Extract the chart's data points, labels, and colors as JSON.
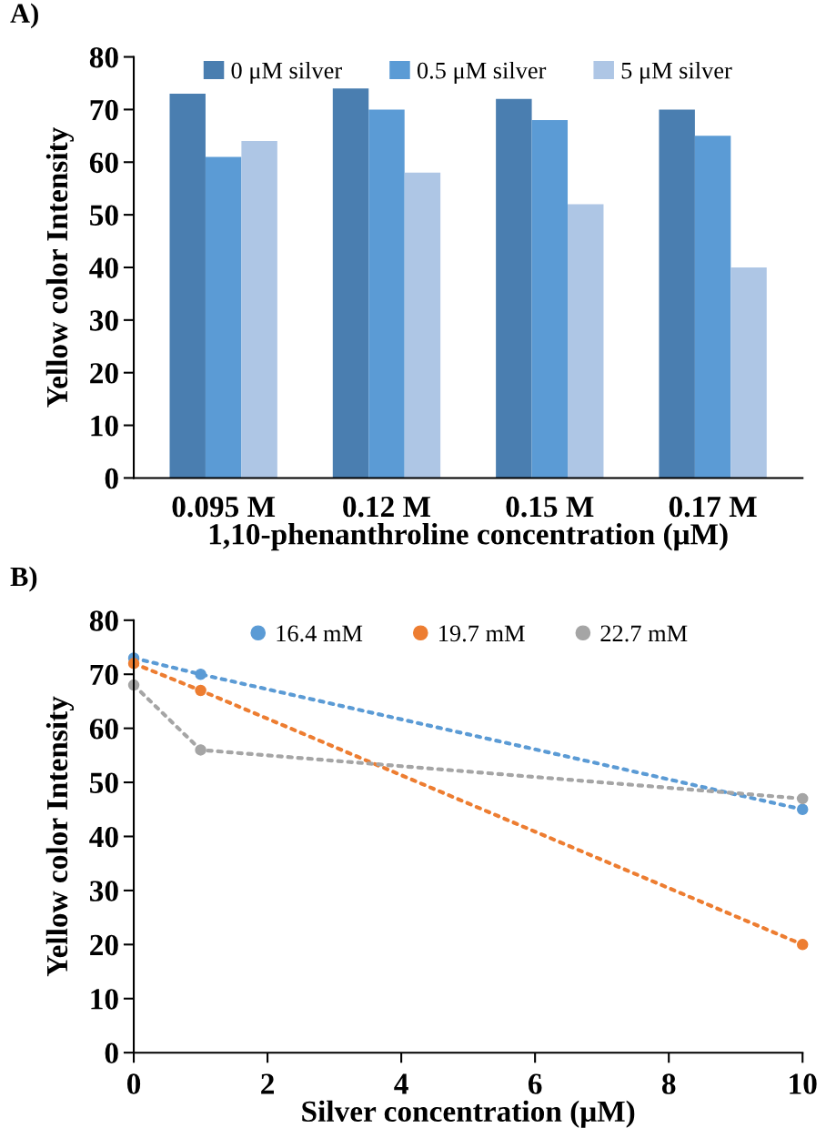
{
  "chart_data": [
    {
      "type": "bar",
      "title": "A)",
      "xlabel": "1,10-phenanthroline concentration (μM)",
      "ylabel": "Yellow color Intensity",
      "categories": [
        "0.095 M",
        "0.12 M",
        "0.15 M",
        "0.17 M"
      ],
      "series": [
        {
          "name": "0 μM silver",
          "color": "#4a7eb0",
          "values": [
            73,
            74,
            72,
            70
          ]
        },
        {
          "name": "0.5 μM silver",
          "color": "#5b9bd5",
          "values": [
            61,
            70,
            68,
            65
          ]
        },
        {
          "name": "5 μM silver",
          "color": "#aec6e5",
          "values": [
            64,
            58,
            52,
            40
          ]
        }
      ],
      "ylim": [
        0,
        80
      ],
      "yticks": [
        0,
        10,
        20,
        30,
        40,
        50,
        60,
        70,
        80
      ],
      "grid": false,
      "legend": "top"
    },
    {
      "type": "line",
      "title": "B)",
      "xlabel": "Silver concentration (μM)",
      "ylabel": "Yellow color Intensity",
      "x": [
        0,
        1,
        10
      ],
      "series": [
        {
          "name": "16.4 mM",
          "color": "#5b9bd5",
          "values": [
            73,
            70,
            45
          ]
        },
        {
          "name": "19.7 mM",
          "color": "#ed7d31",
          "values": [
            72,
            67,
            20
          ]
        },
        {
          "name": "22.7 mM",
          "color": "#a5a5a5",
          "values": [
            68,
            56,
            47
          ]
        }
      ],
      "xlim": [
        0,
        10
      ],
      "xticks": [
        0,
        2,
        4,
        6,
        8,
        10
      ],
      "ylim": [
        0,
        80
      ],
      "yticks": [
        0,
        10,
        20,
        30,
        40,
        50,
        60,
        70,
        80
      ],
      "grid": false,
      "legend": "top",
      "marker": "circle",
      "line_style": "dotted"
    }
  ]
}
